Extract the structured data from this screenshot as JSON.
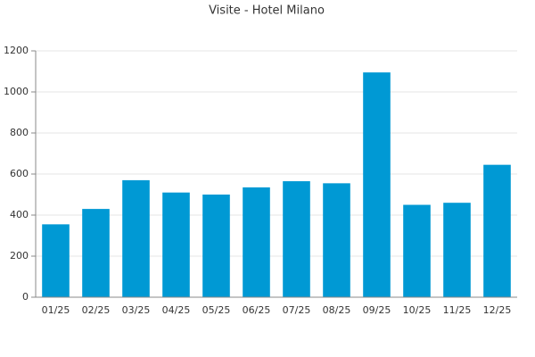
{
  "chart_data": {
    "type": "bar",
    "title": "Visite - Hotel Milano",
    "categories": [
      "01/25",
      "02/25",
      "03/25",
      "04/25",
      "05/25",
      "06/25",
      "07/25",
      "08/25",
      "09/25",
      "10/25",
      "11/25",
      "12/25"
    ],
    "values": [
      355,
      430,
      570,
      510,
      500,
      535,
      565,
      555,
      1095,
      450,
      460,
      645
    ],
    "color": "#0099d4",
    "ylim": [
      0,
      1200
    ],
    "yticks": [
      0,
      200,
      400,
      600,
      800,
      1000,
      1200
    ],
    "grid": true
  }
}
